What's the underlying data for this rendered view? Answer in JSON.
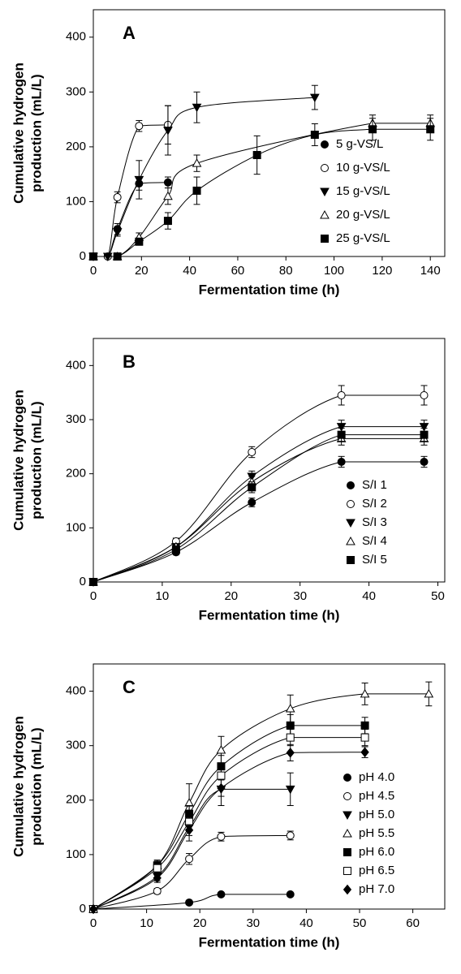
{
  "chart_data": [
    {
      "type": "scatter",
      "title": "A",
      "xlabel": "Fermentation time (h)",
      "ylabel": [
        "Cumulative hydrogen",
        "production (mL/L)"
      ],
      "xlim": [
        0,
        146
      ],
      "ylim": [
        0,
        450
      ],
      "xticks": [
        0,
        20,
        40,
        60,
        80,
        100,
        120,
        140
      ],
      "yticks": [
        0,
        100,
        200,
        300,
        400
      ],
      "legend": "right",
      "series": [
        {
          "name": "5 g-VS/L",
          "color": "#000000",
          "marker": "circle-filled",
          "x": [
            0,
            6,
            10,
            19,
            31
          ],
          "values": [
            0,
            0,
            50,
            133,
            135
          ],
          "errors": [
            0,
            0,
            10,
            12,
            10
          ]
        },
        {
          "name": "10 g-VS/L",
          "color": "#000000",
          "marker": "circle-open",
          "x": [
            0,
            6,
            10,
            19,
            31
          ],
          "values": [
            0,
            0,
            108,
            238,
            240
          ],
          "errors": [
            0,
            0,
            10,
            10,
            35
          ]
        },
        {
          "name": "15 g-VS/L",
          "color": "#000000",
          "marker": "triangle-down-filled",
          "x": [
            0,
            6,
            10,
            19,
            31,
            43,
            92
          ],
          "values": [
            0,
            0,
            45,
            140,
            230,
            272,
            290
          ],
          "errors": [
            0,
            0,
            8,
            35,
            45,
            28,
            22
          ]
        },
        {
          "name": "20 g-VS/L",
          "color": "#000000",
          "marker": "triangle-up-open",
          "x": [
            0,
            10,
            19,
            31,
            43,
            116,
            140
          ],
          "values": [
            0,
            0,
            35,
            110,
            170,
            243,
            243
          ],
          "errors": [
            0,
            0,
            8,
            15,
            15,
            15,
            15
          ]
        },
        {
          "name": "25 g-VS/L",
          "color": "#000000",
          "marker": "square-filled",
          "x": [
            0,
            10,
            19,
            31,
            43,
            68,
            92,
            116,
            140
          ],
          "values": [
            0,
            0,
            27,
            65,
            120,
            185,
            222,
            232,
            232
          ],
          "errors": [
            0,
            0,
            5,
            15,
            25,
            35,
            20,
            20,
            20
          ]
        }
      ]
    },
    {
      "type": "scatter",
      "title": "B",
      "xlabel": "Fermentation time (h)",
      "ylabel": [
        "Cumulative hydrogen",
        "production (mL/L)"
      ],
      "xlim": [
        0,
        51
      ],
      "ylim": [
        0,
        450
      ],
      "xticks": [
        0,
        10,
        20,
        30,
        40,
        50
      ],
      "yticks": [
        0,
        100,
        200,
        300,
        400
      ],
      "legend": "right",
      "series": [
        {
          "name": "S/I 1",
          "color": "#000000",
          "marker": "circle-filled",
          "x": [
            0,
            12,
            23,
            36,
            48
          ],
          "values": [
            0,
            55,
            147,
            222,
            222
          ],
          "errors": [
            0,
            5,
            8,
            10,
            10
          ]
        },
        {
          "name": "S/I 2",
          "color": "#000000",
          "marker": "circle-open",
          "x": [
            0,
            12,
            23,
            36,
            48
          ],
          "values": [
            0,
            75,
            240,
            345,
            345
          ],
          "errors": [
            0,
            6,
            10,
            18,
            18
          ]
        },
        {
          "name": "S/I 3",
          "color": "#000000",
          "marker": "triangle-down-filled",
          "x": [
            0,
            12,
            23,
            36,
            48
          ],
          "values": [
            0,
            65,
            195,
            287,
            287
          ],
          "errors": [
            0,
            5,
            10,
            12,
            12
          ]
        },
        {
          "name": "S/I 4",
          "color": "#000000",
          "marker": "triangle-up-open",
          "x": [
            0,
            12,
            23,
            36,
            48
          ],
          "values": [
            0,
            65,
            185,
            265,
            265
          ],
          "errors": [
            0,
            5,
            10,
            12,
            12
          ]
        },
        {
          "name": "S/I 5",
          "color": "#000000",
          "marker": "square-filled",
          "x": [
            0,
            12,
            23,
            36,
            48
          ],
          "values": [
            0,
            60,
            175,
            272,
            272
          ],
          "errors": [
            0,
            5,
            10,
            12,
            12
          ]
        }
      ]
    },
    {
      "type": "scatter",
      "title": "C",
      "xlabel": "Fermentation time (h)",
      "ylabel": [
        "Cumulative hydrogen",
        "production (mL/L)"
      ],
      "xlim": [
        0,
        66
      ],
      "ylim": [
        0,
        450
      ],
      "xticks": [
        0,
        10,
        20,
        30,
        40,
        50,
        60
      ],
      "yticks": [
        0,
        100,
        200,
        300,
        400
      ],
      "legend": "right",
      "series": [
        {
          "name": "pH 4.0",
          "color": "#000000",
          "marker": "circle-filled",
          "x": [
            0,
            18,
            24,
            37
          ],
          "values": [
            0,
            12,
            27,
            27
          ],
          "errors": [
            0,
            3,
            3,
            3
          ]
        },
        {
          "name": "pH 4.5",
          "color": "#000000",
          "marker": "circle-open",
          "x": [
            0,
            12,
            18,
            24,
            37
          ],
          "values": [
            0,
            33,
            92,
            133,
            135
          ],
          "errors": [
            0,
            5,
            10,
            8,
            8
          ]
        },
        {
          "name": "pH 5.0",
          "color": "#000000",
          "marker": "triangle-down-filled",
          "x": [
            0,
            12,
            18,
            24,
            37
          ],
          "values": [
            0,
            60,
            150,
            220,
            220
          ],
          "errors": [
            0,
            8,
            25,
            30,
            30
          ]
        },
        {
          "name": "pH 5.5",
          "color": "#000000",
          "marker": "triangle-up-open",
          "x": [
            0,
            12,
            18,
            24,
            37,
            51,
            63
          ],
          "values": [
            0,
            80,
            195,
            292,
            368,
            395,
            395
          ],
          "errors": [
            0,
            10,
            35,
            25,
            25,
            20,
            22
          ]
        },
        {
          "name": "pH 6.0",
          "color": "#000000",
          "marker": "square-filled",
          "x": [
            0,
            12,
            18,
            24,
            37,
            51
          ],
          "values": [
            0,
            80,
            175,
            262,
            337,
            337
          ],
          "errors": [
            0,
            8,
            15,
            20,
            20,
            15
          ]
        },
        {
          "name": "pH 6.5",
          "color": "#000000",
          "marker": "square-open",
          "x": [
            0,
            12,
            18,
            24,
            37,
            51
          ],
          "values": [
            0,
            75,
            160,
            245,
            315,
            315
          ],
          "errors": [
            0,
            8,
            15,
            20,
            15,
            15
          ]
        },
        {
          "name": "pH 7.0",
          "color": "#000000",
          "marker": "diamond-filled",
          "x": [
            0,
            12,
            18,
            24,
            37,
            51
          ],
          "values": [
            0,
            57,
            145,
            222,
            287,
            288
          ],
          "errors": [
            0,
            8,
            10,
            15,
            15,
            10
          ]
        }
      ]
    }
  ]
}
